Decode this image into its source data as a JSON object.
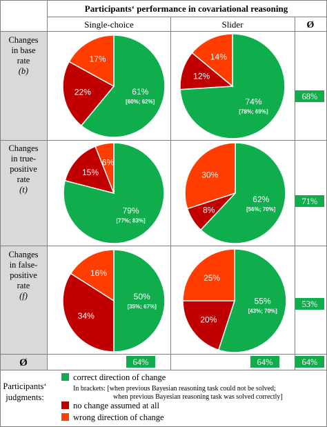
{
  "header": {
    "title": "Participants‘ performance in covariational reasoning",
    "col_single": "Single-choice",
    "col_slider": "Slider",
    "col_avg": "Ø"
  },
  "rows": [
    {
      "label_lines": [
        "Changes",
        "in base",
        "rate"
      ],
      "symbol": "(b)",
      "avg_label": "68%"
    },
    {
      "label_lines": [
        "Changes",
        "in true-",
        "positive",
        "rate"
      ],
      "symbol": "(t)",
      "avg_label": "71%"
    },
    {
      "label_lines": [
        "Changes",
        "in false-",
        "positive",
        "rate"
      ],
      "symbol": "(f)",
      "avg_label": "53%"
    }
  ],
  "footer": {
    "avg_symbol": "Ø",
    "single_avg": "64%",
    "slider_avg": "64%",
    "overall_avg": "64%"
  },
  "legend": {
    "title_lines": [
      "Participants‘",
      "judgments:"
    ],
    "correct": "correct direction of change",
    "bracket_line1": "In brackets: [when previous Bayesian reasoning task could not be solved;",
    "bracket_line2": "when previous Bayesian reasoning task was solved correctly]",
    "no_change": "no change assumed at all",
    "wrong": "wrong direction of change"
  },
  "colors": {
    "correct": "#0fad4b",
    "no_change": "#c00000",
    "wrong": "#ff3d00",
    "row_label_bg": "#d9d9d9",
    "avg_badge": "#0fad4b",
    "border": "#7f7f7f"
  },
  "chart_data": [
    {
      "type": "pie",
      "row": "Changes in base rate (b)",
      "column": "Single-choice",
      "slices": [
        {
          "category": "correct direction of change",
          "value": 61,
          "label": "61%",
          "ci": "[60%; 62%]"
        },
        {
          "category": "no change assumed at all",
          "value": 22,
          "label": "22%"
        },
        {
          "category": "wrong direction of change",
          "value": 17,
          "label": "17%"
        }
      ]
    },
    {
      "type": "pie",
      "row": "Changes in base rate (b)",
      "column": "Slider",
      "slices": [
        {
          "category": "correct direction of change",
          "value": 74,
          "label": "74%",
          "ci": "[78%; 69%]"
        },
        {
          "category": "no change assumed at all",
          "value": 12,
          "label": "12%"
        },
        {
          "category": "wrong direction of change",
          "value": 14,
          "label": "14%"
        }
      ]
    },
    {
      "type": "pie",
      "row": "Changes in true-positive rate (t)",
      "column": "Single-choice",
      "slices": [
        {
          "category": "correct direction of change",
          "value": 79,
          "label": "79%",
          "ci": "[77%; 83%]"
        },
        {
          "category": "no change assumed at all",
          "value": 15,
          "label": "15%"
        },
        {
          "category": "wrong direction of change",
          "value": 6,
          "label": "6%"
        }
      ]
    },
    {
      "type": "pie",
      "row": "Changes in true-positive rate (t)",
      "column": "Slider",
      "slices": [
        {
          "category": "correct direction of change",
          "value": 62,
          "label": "62%",
          "ci": "[56%; 70%]"
        },
        {
          "category": "no change assumed at all",
          "value": 8,
          "label": "8%"
        },
        {
          "category": "wrong direction of change",
          "value": 30,
          "label": "30%"
        }
      ]
    },
    {
      "type": "pie",
      "row": "Changes in false-positive rate (f)",
      "column": "Single-choice",
      "slices": [
        {
          "category": "correct direction of change",
          "value": 50,
          "label": "50%",
          "ci": "[35%; 67%]"
        },
        {
          "category": "no change assumed at all",
          "value": 34,
          "label": "34%"
        },
        {
          "category": "wrong direction of change",
          "value": 16,
          "label": "16%"
        }
      ]
    },
    {
      "type": "pie",
      "row": "Changes in false-positive rate (f)",
      "column": "Slider",
      "slices": [
        {
          "category": "correct direction of change",
          "value": 55,
          "label": "55%",
          "ci": "[43%; 70%]"
        },
        {
          "category": "no change assumed at all",
          "value": 20,
          "label": "20%"
        },
        {
          "category": "wrong direction of change",
          "value": 25,
          "label": "25%"
        }
      ]
    }
  ]
}
